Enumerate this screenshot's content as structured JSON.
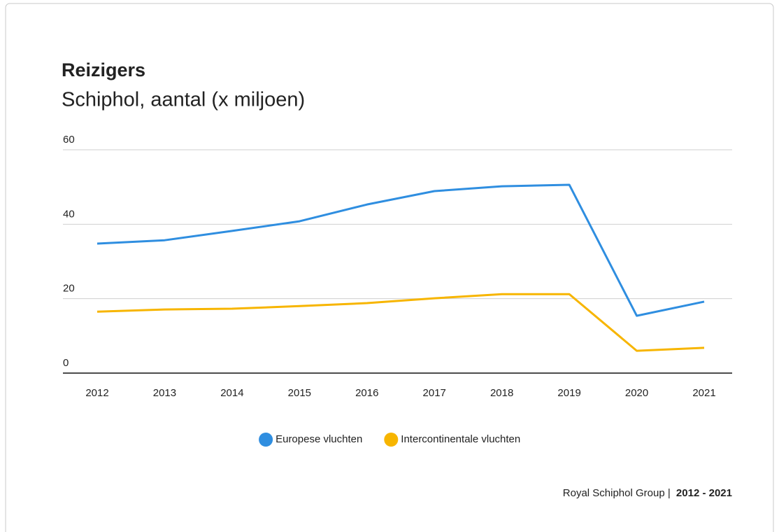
{
  "chart_data": {
    "type": "line",
    "title": "Reizigers",
    "subtitle": "Schiphol, aantal (x miljoen)",
    "categories": [
      "2012",
      "2013",
      "2014",
      "2015",
      "2016",
      "2017",
      "2018",
      "2019",
      "2020",
      "2021"
    ],
    "series": [
      {
        "name": "Europese vluchten",
        "color": "#2f8ee0",
        "values": [
          34.8,
          35.7,
          38.2,
          40.8,
          45.3,
          48.9,
          50.2,
          50.6,
          15.4,
          19.2
        ]
      },
      {
        "name": "Intercontinentale vluchten",
        "color": "#f7b500",
        "values": [
          16.5,
          17.1,
          17.3,
          18.0,
          18.8,
          20.1,
          21.2,
          21.2,
          6.0,
          6.8
        ]
      }
    ],
    "ylim": [
      0,
      60
    ],
    "yticks": [
      0,
      20,
      40,
      60
    ],
    "grid": true,
    "legend": "bottom",
    "source": "Royal Schiphol Group |",
    "source_period": "2012 - 2021"
  }
}
